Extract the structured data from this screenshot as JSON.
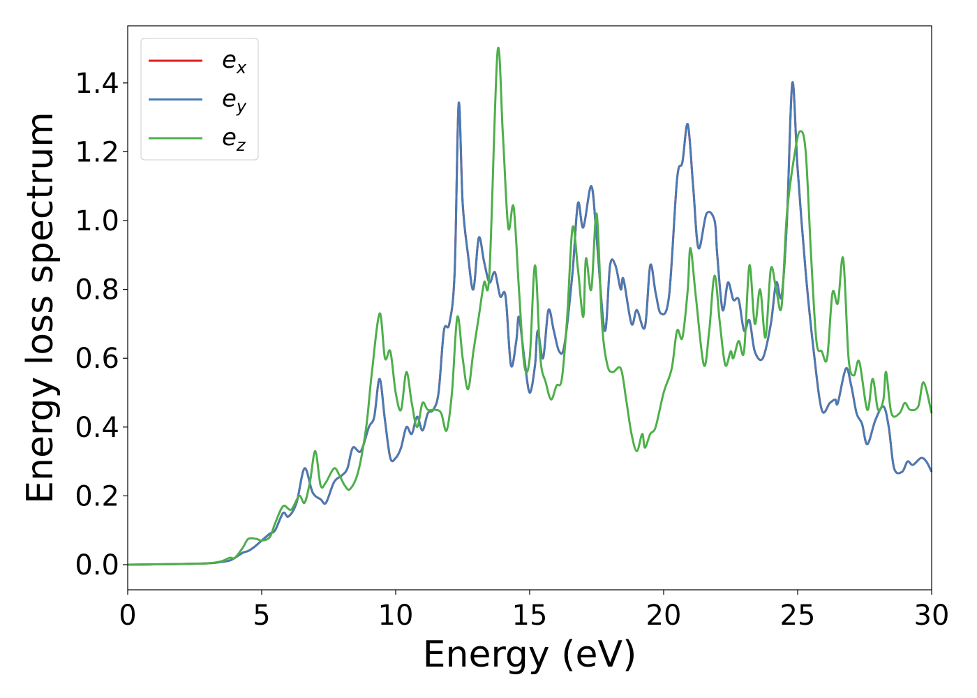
{
  "chart_data": {
    "type": "line",
    "xlabel": "Energy (eV)",
    "ylabel": "Energy loss spectrum",
    "xlim": [
      0,
      30
    ],
    "ylim": [
      -0.073,
      1.566
    ],
    "xticks": [
      0,
      5,
      10,
      15,
      20,
      25,
      30
    ],
    "yticks": [
      {
        "value": 0.0,
        "label": "0.0"
      },
      0.2,
      0.4,
      0.6,
      0.8,
      {
        "value": 1.0,
        "label": "1.0"
      },
      1.2,
      1.4
    ],
    "legend": "upper left",
    "series": [
      {
        "name": "e",
        "subscript": "x",
        "color": "#e41a1c",
        "x": [
          0,
          1,
          2,
          3,
          3.5,
          3.8,
          4.0,
          4.3,
          4.5,
          4.7,
          5.0,
          5.3,
          5.5,
          5.8,
          6.0,
          6.3,
          6.6,
          6.9,
          7.2,
          7.4,
          7.7,
          8.0,
          8.2,
          8.4,
          8.7,
          9.0,
          9.2,
          9.4,
          9.6,
          9.8,
          10.0,
          10.2,
          10.4,
          10.6,
          10.8,
          11.0,
          11.2,
          11.4,
          11.6,
          11.8,
          12.0,
          12.2,
          12.35,
          12.5,
          12.7,
          12.9,
          13.1,
          13.3,
          13.5,
          13.7,
          13.9,
          14.1,
          14.3,
          14.5,
          14.6,
          14.8,
          15.0,
          15.2,
          15.3,
          15.5,
          15.7,
          15.9,
          16.1,
          16.3,
          16.6,
          16.8,
          17.0,
          17.3,
          17.5,
          17.8,
          18.0,
          18.2,
          18.4,
          18.5,
          18.8,
          19.0,
          19.3,
          19.5,
          19.7,
          19.9,
          20.2,
          20.5,
          20.7,
          20.9,
          21.1,
          21.3,
          21.6,
          21.9,
          22.0,
          22.2,
          22.4,
          22.6,
          22.8,
          23.0,
          23.2,
          23.4,
          23.7,
          24.0,
          24.2,
          24.4,
          24.6,
          24.8,
          25.0,
          25.3,
          25.6,
          25.9,
          26.2,
          26.4,
          26.5,
          26.8,
          27.0,
          27.2,
          27.4,
          27.6,
          27.9,
          28.2,
          28.4,
          28.6,
          28.9,
          29.1,
          29.3,
          29.6,
          29.8,
          30.0
        ],
        "values": [
          0,
          0.001,
          0.002,
          0.004,
          0.008,
          0.012,
          0.02,
          0.035,
          0.04,
          0.05,
          0.07,
          0.09,
          0.1,
          0.15,
          0.14,
          0.18,
          0.28,
          0.21,
          0.19,
          0.18,
          0.24,
          0.26,
          0.28,
          0.34,
          0.33,
          0.4,
          0.43,
          0.54,
          0.42,
          0.31,
          0.31,
          0.34,
          0.4,
          0.38,
          0.43,
          0.39,
          0.44,
          0.45,
          0.5,
          0.68,
          0.7,
          0.85,
          1.34,
          1.05,
          0.9,
          0.8,
          0.95,
          0.88,
          0.82,
          0.85,
          0.78,
          0.78,
          0.58,
          0.65,
          0.72,
          0.6,
          0.5,
          0.58,
          0.68,
          0.6,
          0.74,
          0.68,
          0.62,
          0.64,
          0.85,
          1.05,
          0.98,
          1.1,
          0.95,
          0.68,
          0.87,
          0.87,
          0.8,
          0.83,
          0.7,
          0.74,
          0.69,
          0.87,
          0.79,
          0.73,
          0.78,
          1.12,
          1.17,
          1.28,
          1.1,
          0.92,
          1.02,
          1.0,
          0.9,
          0.74,
          0.82,
          0.77,
          0.77,
          0.68,
          0.71,
          0.62,
          0.6,
          0.7,
          0.82,
          0.78,
          1.0,
          1.4,
          1.15,
          0.85,
          0.62,
          0.45,
          0.47,
          0.48,
          0.47,
          0.57,
          0.52,
          0.44,
          0.41,
          0.35,
          0.42,
          0.46,
          0.4,
          0.28,
          0.27,
          0.3,
          0.29,
          0.31,
          0.3,
          0.27
        ]
      },
      {
        "name": "e",
        "subscript": "y",
        "color": "#4a7ab3",
        "x": [
          0,
          1,
          2,
          3,
          3.5,
          3.8,
          4.0,
          4.3,
          4.5,
          4.7,
          5.0,
          5.3,
          5.5,
          5.8,
          6.0,
          6.3,
          6.6,
          6.9,
          7.2,
          7.4,
          7.7,
          8.0,
          8.2,
          8.4,
          8.7,
          9.0,
          9.2,
          9.4,
          9.6,
          9.8,
          10.0,
          10.2,
          10.4,
          10.6,
          10.8,
          11.0,
          11.2,
          11.4,
          11.6,
          11.8,
          12.0,
          12.2,
          12.35,
          12.5,
          12.7,
          12.9,
          13.1,
          13.3,
          13.5,
          13.7,
          13.9,
          14.1,
          14.3,
          14.5,
          14.6,
          14.8,
          15.0,
          15.2,
          15.3,
          15.5,
          15.7,
          15.9,
          16.1,
          16.3,
          16.6,
          16.8,
          17.0,
          17.3,
          17.5,
          17.8,
          18.0,
          18.2,
          18.4,
          18.5,
          18.8,
          19.0,
          19.3,
          19.5,
          19.7,
          19.9,
          20.2,
          20.5,
          20.7,
          20.9,
          21.1,
          21.3,
          21.6,
          21.9,
          22.0,
          22.2,
          22.4,
          22.6,
          22.8,
          23.0,
          23.2,
          23.4,
          23.7,
          24.0,
          24.2,
          24.4,
          24.6,
          24.8,
          25.0,
          25.3,
          25.6,
          25.9,
          26.2,
          26.4,
          26.5,
          26.8,
          27.0,
          27.2,
          27.4,
          27.6,
          27.9,
          28.2,
          28.4,
          28.6,
          28.9,
          29.1,
          29.3,
          29.6,
          29.8,
          30.0
        ],
        "values": [
          0,
          0.001,
          0.002,
          0.004,
          0.008,
          0.012,
          0.02,
          0.035,
          0.04,
          0.05,
          0.07,
          0.09,
          0.1,
          0.15,
          0.14,
          0.18,
          0.28,
          0.21,
          0.19,
          0.18,
          0.24,
          0.26,
          0.28,
          0.34,
          0.33,
          0.4,
          0.43,
          0.54,
          0.42,
          0.31,
          0.31,
          0.34,
          0.4,
          0.38,
          0.43,
          0.39,
          0.44,
          0.45,
          0.5,
          0.68,
          0.7,
          0.85,
          1.34,
          1.05,
          0.9,
          0.8,
          0.95,
          0.88,
          0.82,
          0.85,
          0.78,
          0.78,
          0.58,
          0.65,
          0.72,
          0.6,
          0.5,
          0.58,
          0.68,
          0.6,
          0.74,
          0.68,
          0.62,
          0.64,
          0.85,
          1.05,
          0.98,
          1.1,
          0.95,
          0.68,
          0.87,
          0.87,
          0.8,
          0.83,
          0.7,
          0.74,
          0.69,
          0.87,
          0.79,
          0.73,
          0.78,
          1.12,
          1.17,
          1.28,
          1.1,
          0.92,
          1.02,
          1.0,
          0.9,
          0.74,
          0.82,
          0.77,
          0.77,
          0.68,
          0.71,
          0.62,
          0.6,
          0.7,
          0.82,
          0.78,
          1.0,
          1.4,
          1.15,
          0.85,
          0.62,
          0.45,
          0.47,
          0.48,
          0.47,
          0.57,
          0.52,
          0.44,
          0.41,
          0.35,
          0.42,
          0.46,
          0.4,
          0.28,
          0.27,
          0.3,
          0.29,
          0.31,
          0.3,
          0.27
        ]
      },
      {
        "name": "e",
        "subscript": "z",
        "color": "#4daf4a",
        "x": [
          0,
          1,
          2,
          3,
          3.5,
          3.8,
          4.0,
          4.3,
          4.5,
          4.8,
          5.0,
          5.3,
          5.5,
          5.8,
          6.1,
          6.4,
          6.6,
          6.8,
          7.0,
          7.2,
          7.4,
          7.7,
          7.9,
          8.1,
          8.3,
          8.6,
          8.9,
          9.1,
          9.4,
          9.6,
          9.8,
          10.0,
          10.2,
          10.4,
          10.6,
          10.8,
          11.0,
          11.2,
          11.5,
          11.7,
          11.9,
          12.1,
          12.3,
          12.5,
          12.7,
          12.9,
          13.1,
          13.3,
          13.5,
          13.8,
          14.0,
          14.2,
          14.4,
          14.6,
          14.8,
          15.0,
          15.2,
          15.4,
          15.6,
          15.8,
          16.0,
          16.2,
          16.4,
          16.6,
          16.8,
          17.0,
          17.1,
          17.3,
          17.5,
          17.7,
          17.9,
          18.1,
          18.4,
          18.6,
          18.8,
          19.0,
          19.2,
          19.3,
          19.5,
          19.7,
          20.0,
          20.3,
          20.5,
          20.7,
          20.9,
          21.0,
          21.2,
          21.5,
          21.7,
          21.9,
          22.1,
          22.3,
          22.5,
          22.6,
          22.8,
          23.0,
          23.2,
          23.4,
          23.6,
          23.8,
          24.0,
          24.2,
          24.4,
          24.6,
          24.9,
          25.1,
          25.3,
          25.5,
          25.7,
          25.9,
          26.1,
          26.3,
          26.5,
          26.7,
          26.9,
          27.1,
          27.3,
          27.6,
          27.8,
          28.0,
          28.2,
          28.3,
          28.5,
          28.8,
          29.0,
          29.2,
          29.5,
          29.7,
          30.0
        ],
        "values": [
          0,
          0.001,
          0.002,
          0.004,
          0.01,
          0.02,
          0.02,
          0.05,
          0.075,
          0.075,
          0.07,
          0.08,
          0.12,
          0.17,
          0.16,
          0.2,
          0.18,
          0.24,
          0.33,
          0.23,
          0.24,
          0.28,
          0.26,
          0.23,
          0.22,
          0.27,
          0.4,
          0.55,
          0.73,
          0.6,
          0.62,
          0.5,
          0.45,
          0.56,
          0.47,
          0.4,
          0.47,
          0.45,
          0.45,
          0.44,
          0.39,
          0.5,
          0.72,
          0.6,
          0.51,
          0.62,
          0.72,
          0.82,
          0.85,
          1.49,
          1.25,
          0.98,
          1.04,
          0.8,
          0.58,
          0.6,
          0.87,
          0.6,
          0.53,
          0.48,
          0.52,
          0.54,
          0.72,
          0.98,
          0.86,
          0.72,
          0.89,
          0.8,
          1.02,
          0.7,
          0.58,
          0.56,
          0.57,
          0.48,
          0.38,
          0.33,
          0.38,
          0.34,
          0.38,
          0.4,
          0.5,
          0.57,
          0.68,
          0.66,
          0.8,
          0.92,
          0.78,
          0.58,
          0.68,
          0.84,
          0.7,
          0.58,
          0.62,
          0.6,
          0.65,
          0.62,
          0.87,
          0.7,
          0.8,
          0.66,
          0.86,
          0.8,
          0.75,
          1.02,
          1.2,
          1.26,
          1.2,
          0.9,
          0.65,
          0.62,
          0.6,
          0.79,
          0.76,
          0.89,
          0.6,
          0.55,
          0.59,
          0.45,
          0.54,
          0.45,
          0.48,
          0.56,
          0.44,
          0.44,
          0.47,
          0.45,
          0.46,
          0.53,
          0.44
        ]
      }
    ]
  }
}
